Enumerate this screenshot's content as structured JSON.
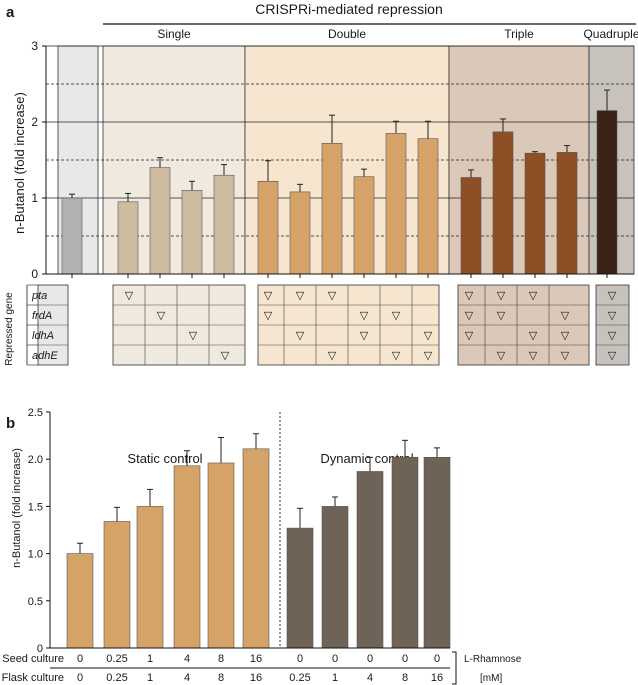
{
  "chart_data": [
    {
      "type": "bar",
      "panel_label": "a",
      "title": "CRISPRi-mediated repression",
      "ylabel": "n-Butanol (fold increase)",
      "ylim": [
        0,
        3
      ],
      "yticks": [
        "0",
        "1",
        "2",
        "3"
      ],
      "groups": [
        {
          "name": "",
          "values": [
            1.0
          ],
          "errors": [
            0.05
          ],
          "color": "#b2b2b2",
          "bg": "#e8e8e8"
        },
        {
          "name": "Single",
          "values": [
            0.95,
            1.4,
            1.1,
            1.3
          ],
          "errors": [
            0.11,
            0.13,
            0.12,
            0.14
          ],
          "color": "#cdbb9e",
          "bg": "#f0e9df"
        },
        {
          "name": "Double",
          "values": [
            1.22,
            1.08,
            1.72,
            1.28,
            1.85,
            1.78
          ],
          "errors": [
            0.27,
            0.1,
            0.37,
            0.1,
            0.16,
            0.23
          ],
          "color": "#d5a367",
          "bg": "#f6e6cf"
        },
        {
          "name": "Triple",
          "values": [
            1.27,
            1.87,
            1.59,
            1.6
          ],
          "errors": [
            0.1,
            0.17,
            0.02,
            0.09
          ],
          "color": "#8e4f26",
          "bg": "#dbc8b9"
        },
        {
          "name": "Quadruple",
          "values": [
            2.15
          ],
          "errors": [
            0.27
          ],
          "color": "#3a2418",
          "bg": "#c8c2bc"
        }
      ],
      "repressed_gene_label": "Repressed gene",
      "genes": [
        "pta",
        "frdA",
        "ldhA",
        "adhE"
      ],
      "marker": "▽",
      "matrix": [
        [
          [
            0,
            0,
            0,
            0
          ]
        ],
        [
          [
            1,
            0,
            0,
            0
          ],
          [
            0,
            1,
            0,
            0
          ],
          [
            0,
            0,
            1,
            0
          ],
          [
            0,
            0,
            0,
            1
          ]
        ],
        [
          [
            1,
            1,
            0,
            0
          ],
          [
            1,
            0,
            1,
            0
          ],
          [
            1,
            0,
            0,
            1
          ],
          [
            0,
            1,
            1,
            0
          ],
          [
            0,
            1,
            0,
            1
          ],
          [
            0,
            0,
            1,
            1
          ]
        ],
        [
          [
            1,
            1,
            1,
            0
          ],
          [
            1,
            1,
            0,
            1
          ],
          [
            1,
            0,
            1,
            1
          ],
          [
            0,
            1,
            1,
            1
          ]
        ],
        [
          [
            1,
            1,
            1,
            1
          ]
        ]
      ]
    },
    {
      "type": "bar",
      "panel_label": "b",
      "ylabel": "n-Butanol (fold increase)",
      "ylim": [
        0,
        2.5
      ],
      "yticks": [
        "0",
        "0.5",
        "1.0",
        "1.5",
        "2.0",
        "2.5"
      ],
      "series": [
        {
          "name": "Static control",
          "values": [
            1.0,
            1.34,
            1.5,
            1.93,
            1.96,
            2.11
          ],
          "errors": [
            0.11,
            0.15,
            0.18,
            0.16,
            0.27,
            0.16
          ],
          "color": "#d5a367"
        },
        {
          "name": "Dynamic control",
          "values": [
            1.27,
            1.5,
            1.87,
            2.02,
            2.02
          ],
          "errors": [
            0.21,
            0.1,
            0.15,
            0.18,
            0.1
          ],
          "color": "#6f6358"
        }
      ],
      "seed_culture_label": "Seed culture",
      "flask_culture_label": "Flask culture",
      "seed_culture": [
        "0",
        "0.25",
        "1",
        "4",
        "8",
        "16",
        "0",
        "0",
        "0",
        "0",
        "0"
      ],
      "flask_culture": [
        "0",
        "0.25",
        "1",
        "4",
        "8",
        "16",
        "0.25",
        "1",
        "4",
        "8",
        "16"
      ],
      "rhamnose_label": "L-Rhamnose",
      "rhamnose_unit": "[mM]"
    }
  ]
}
